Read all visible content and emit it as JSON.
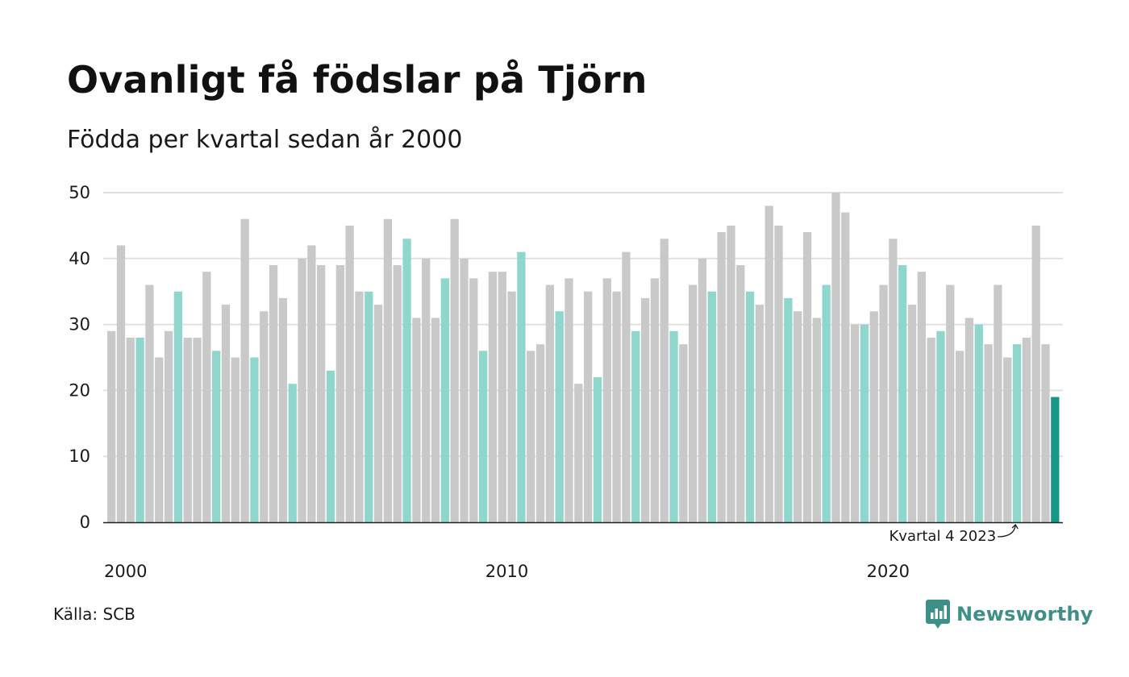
{
  "colors": {
    "default": "#c9c9c9",
    "quarter4": "#8fd6cd",
    "highlight": "#17968a",
    "grid": "#e0e0e0",
    "axis": "#222222",
    "brand": "#3d8f87"
  },
  "chart_data": {
    "type": "bar",
    "title": "Ovanligt få födslar på Tjörn",
    "subtitle": "Födda per kvartal sedan år 2000",
    "xlabel": "",
    "ylabel": "",
    "ylim": [
      0,
      50
    ],
    "yticks": [
      "0",
      "10",
      "20",
      "30",
      "40",
      "50"
    ],
    "xticks": [
      "2000",
      "2010",
      "2020"
    ],
    "grid": true,
    "start_year": 2000,
    "start_quarter": 1,
    "values": [
      29,
      42,
      28,
      28,
      36,
      25,
      29,
      35,
      28,
      28,
      38,
      26,
      33,
      25,
      46,
      25,
      32,
      39,
      34,
      21,
      40,
      42,
      39,
      23,
      39,
      45,
      35,
      35,
      33,
      46,
      39,
      43,
      31,
      40,
      31,
      37,
      46,
      40,
      37,
      26,
      38,
      38,
      35,
      41,
      26,
      27,
      36,
      32,
      37,
      21,
      35,
      22,
      37,
      35,
      41,
      29,
      34,
      37,
      43,
      29,
      27,
      36,
      40,
      35,
      44,
      45,
      39,
      35,
      33,
      48,
      45,
      34,
      32,
      44,
      31,
      36,
      50,
      47,
      30,
      30,
      32,
      36,
      43,
      39,
      33,
      38,
      28,
      29,
      36,
      26,
      31,
      30,
      27,
      36,
      25,
      27,
      28,
      45,
      27,
      19
    ],
    "annotation": "Kvartal 4 2023"
  },
  "source": "Källa: SCB",
  "brand": {
    "name": "Newsworthy",
    "logo_icon": "newsworthy-chart-bubble-icon"
  }
}
